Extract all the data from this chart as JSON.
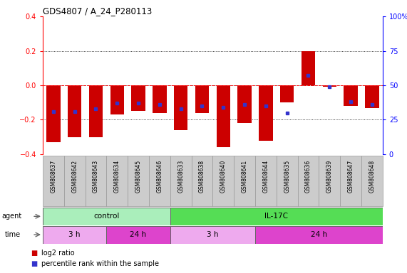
{
  "title": "GDS4807 / A_24_P280113",
  "samples": [
    "GSM808637",
    "GSM808642",
    "GSM808643",
    "GSM808634",
    "GSM808645",
    "GSM808646",
    "GSM808633",
    "GSM808638",
    "GSM808640",
    "GSM808641",
    "GSM808644",
    "GSM808635",
    "GSM808636",
    "GSM808639",
    "GSM808647",
    "GSM808648"
  ],
  "log2_ratio": [
    -0.33,
    -0.3,
    -0.3,
    -0.17,
    -0.15,
    -0.16,
    -0.26,
    -0.16,
    -0.36,
    -0.22,
    -0.32,
    -0.1,
    0.2,
    -0.01,
    -0.12,
    -0.13
  ],
  "percentile_rank": [
    31,
    31,
    33,
    37,
    37,
    36,
    33,
    35,
    34,
    36,
    35,
    30,
    57,
    49,
    38,
    36
  ],
  "ylim": [
    -0.4,
    0.4
  ],
  "yticks": [
    -0.4,
    -0.2,
    0.0,
    0.2,
    0.4
  ],
  "y2ticks": [
    0,
    25,
    50,
    75,
    100
  ],
  "bar_color": "#cc0000",
  "dot_color": "#3333cc",
  "agent_control_count": 6,
  "agent_il17c_count": 10,
  "time_3h_control_count": 3,
  "time_24h_control_count": 3,
  "time_3h_il17c_count": 4,
  "time_24h_il17c_count": 6,
  "color_control_green": "#aaeebb",
  "color_il17c_green": "#55dd55",
  "color_3h_pink": "#eeaaee",
  "color_24h_pink": "#dd44cc",
  "color_label_bg": "#cccccc",
  "legend_red_label": "log2 ratio",
  "legend_blue_label": "percentile rank within the sample"
}
